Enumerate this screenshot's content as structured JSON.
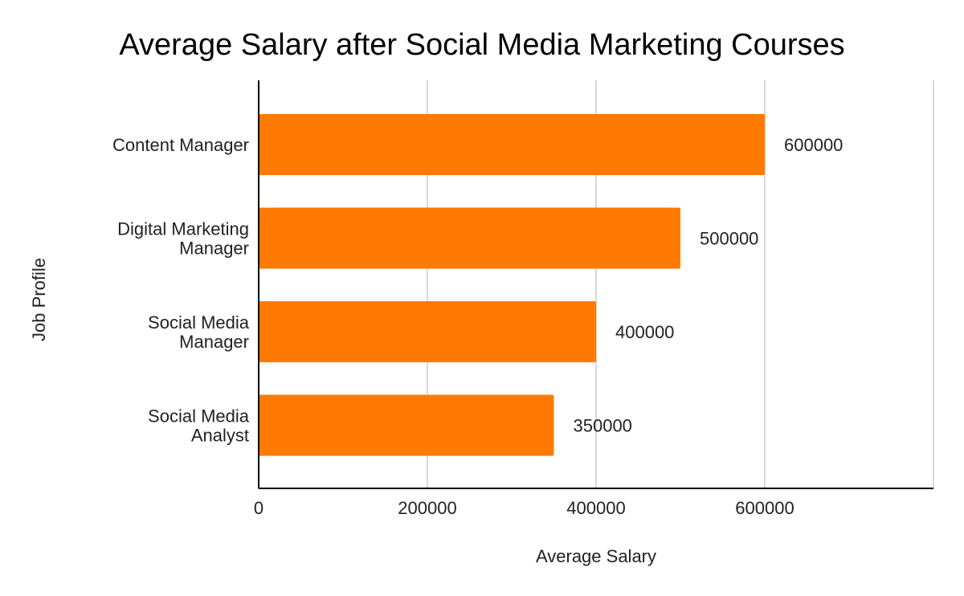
{
  "chart_data": {
    "type": "bar",
    "orientation": "horizontal",
    "title": "Average Salary after Social Media Marketing Courses",
    "xlabel": "Average Salary",
    "ylabel": "Job Profile",
    "categories": [
      [
        "Content Manager"
      ],
      [
        "Digital Marketing",
        "Manager"
      ],
      [
        "Social Media",
        "Manager"
      ],
      [
        "Social Media",
        "Analyst"
      ]
    ],
    "series": [
      {
        "values": [
          600000,
          500000,
          400000,
          350000
        ],
        "color": "#ff7a00"
      }
    ],
    "xlim": [
      0,
      800000
    ],
    "xticks": [
      0,
      200000,
      400000,
      600000
    ],
    "grid": true,
    "data_labels": true,
    "legend": "none"
  }
}
